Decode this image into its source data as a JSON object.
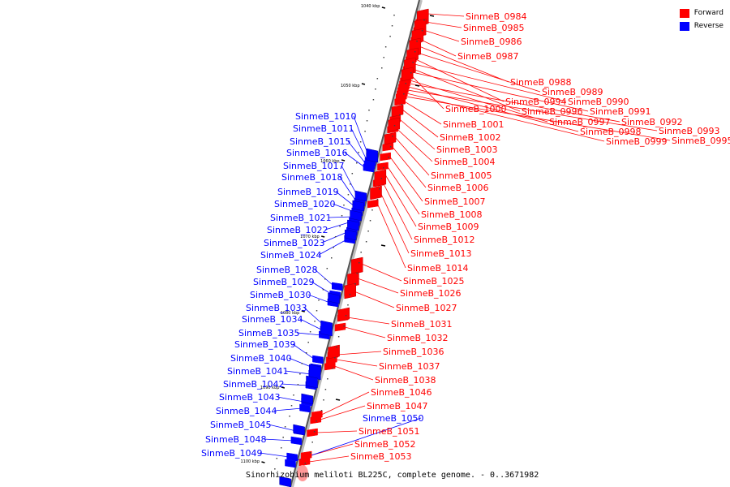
{
  "legend": {
    "forward_label": "Forward",
    "reverse_label": "Reverse",
    "forward_color": "#ff0000",
    "reverse_color": "#0000ff"
  },
  "caption": "Sinorhizobium meliloti BL225C, complete genome. - 0..3671982",
  "ticks": [
    "1040 kbp",
    "1050 kbp",
    "1060 kbp",
    "1070 kbp",
    "1080 kbp",
    "1090 kbp",
    "1100 kbp"
  ],
  "forward_genes": [
    "SinmeB_0984",
    "SinmeB_0985",
    "SinmeB_0986",
    "SinmeB_0987",
    "SinmeB_0988",
    "SinmeB_0989",
    "SinmeB_0994",
    "SinmeB_0990",
    "SinmeB_0996",
    "SinmeB_0991",
    "SinmeB_1000",
    "SinmeB_0997",
    "SinmeB_0992",
    "SinmeB_0998",
    "SinmeB_0993",
    "SinmeB_0999",
    "SinmeB_0995",
    "SinmeB_1001",
    "SinmeB_1002",
    "SinmeB_1003",
    "SinmeB_1004",
    "SinmeB_1005",
    "SinmeB_1006",
    "SinmeB_1007",
    "SinmeB_1008",
    "SinmeB_1009",
    "SinmeB_1012",
    "SinmeB_1013",
    "SinmeB_1014",
    "SinmeB_1025",
    "SinmeB_1026",
    "SinmeB_1027",
    "SinmeB_1031",
    "SinmeB_1032",
    "SinmeB_1036",
    "SinmeB_1037",
    "SinmeB_1038",
    "SinmeB_1046",
    "SinmeB_1047",
    "SinmeB_1051",
    "SinmeB_1052",
    "SinmeB_1053"
  ],
  "reverse_genes": [
    "SinmeB_1010",
    "SinmeB_1011",
    "SinmeB_1015",
    "SinmeB_1016",
    "SinmeB_1017",
    "SinmeB_1018",
    "SinmeB_1019",
    "SinmeB_1020",
    "SinmeB_1021",
    "SinmeB_1022",
    "SinmeB_1023",
    "SinmeB_1024",
    "SinmeB_1028",
    "SinmeB_1029",
    "SinmeB_1030",
    "SinmeB_1033",
    "SinmeB_1034",
    "SinmeB_1035",
    "SinmeB_1039",
    "SinmeB_1040",
    "SinmeB_1041",
    "SinmeB_1042",
    "SinmeB_1043",
    "SinmeB_1044",
    "SinmeB_1045",
    "SinmeB_1048",
    "SinmeB_1049",
    "SinmeB_1050"
  ]
}
